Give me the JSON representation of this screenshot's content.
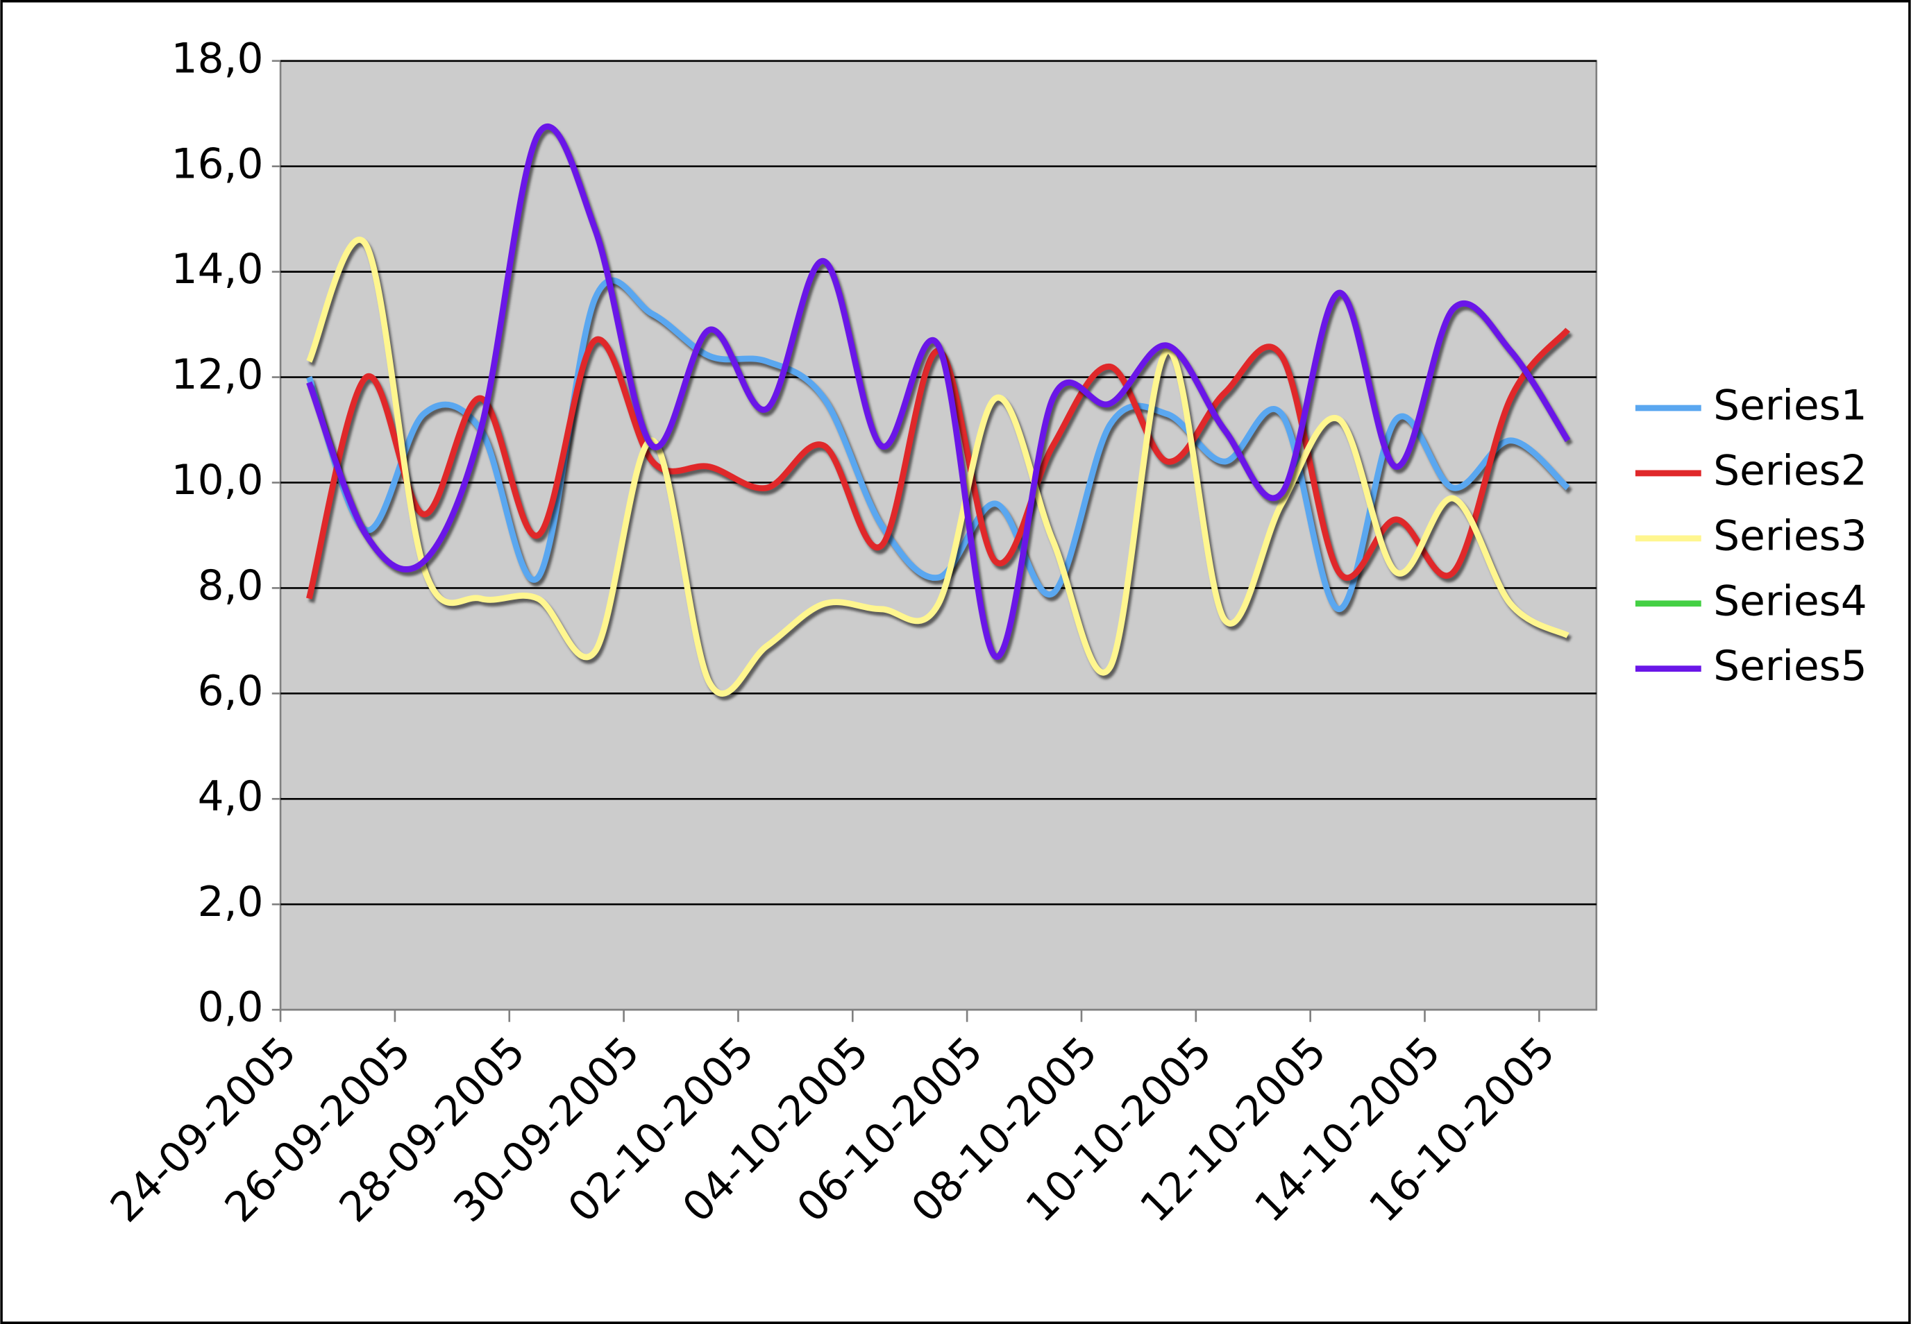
{
  "chart_data": {
    "type": "line",
    "categories": [
      "24-09-2005",
      null,
      "26-09-2005",
      null,
      "28-09-2005",
      null,
      "30-09-2005",
      null,
      "02-10-2005",
      null,
      "04-10-2005",
      null,
      "06-10-2005",
      null,
      "08-10-2005",
      null,
      "10-10-2005",
      null,
      "12-10-2005",
      null,
      "14-10-2005",
      null,
      "16-10-2005"
    ],
    "series": [
      {
        "name": "Series1",
        "color": "#5aa7f0",
        "values": [
          12.0,
          9.1,
          11.3,
          11.0,
          8.2,
          13.5,
          13.2,
          12.4,
          12.3,
          11.6,
          9.2,
          8.2,
          9.6,
          7.9,
          11.1,
          11.3,
          10.4,
          11.3,
          7.6,
          11.2,
          9.9,
          10.8,
          9.9
        ]
      },
      {
        "name": "Series2",
        "color": "#e0282a",
        "values": [
          7.8,
          12.0,
          9.4,
          11.6,
          9.0,
          12.7,
          10.4,
          10.3,
          9.9,
          10.7,
          8.8,
          12.5,
          8.5,
          10.7,
          12.2,
          10.4,
          11.7,
          12.4,
          8.3,
          9.3,
          8.3,
          11.6,
          12.9
        ]
      },
      {
        "name": "Series3",
        "color": "#fff68f",
        "values": [
          12.3,
          14.5,
          8.4,
          7.8,
          7.8,
          6.8,
          10.8,
          6.2,
          6.9,
          7.7,
          7.6,
          7.7,
          11.6,
          8.9,
          6.5,
          12.5,
          7.4,
          9.6,
          11.2,
          8.3,
          9.7,
          7.7,
          7.1
        ]
      },
      {
        "name": "Series4",
        "color": "#44d044",
        "values": [
          null,
          null,
          null,
          null,
          null,
          null,
          null,
          null,
          null,
          null,
          null,
          null,
          null,
          null,
          null,
          null,
          null,
          null,
          null,
          null,
          null,
          null,
          null
        ]
      },
      {
        "name": "Series5",
        "color": "#6a16e8",
        "values": [
          11.9,
          9.0,
          8.5,
          11.0,
          16.6,
          14.8,
          10.7,
          12.9,
          11.4,
          14.2,
          10.7,
          12.6,
          6.7,
          11.6,
          11.5,
          12.6,
          11.0,
          9.8,
          13.6,
          10.3,
          13.3,
          12.5,
          10.8
        ]
      }
    ],
    "ylim": [
      0,
      18
    ],
    "yticks": [
      {
        "value": 0,
        "label": "0,0"
      },
      {
        "value": 2,
        "label": "2,0"
      },
      {
        "value": 4,
        "label": "4,0"
      },
      {
        "value": 6,
        "label": "6,0"
      },
      {
        "value": 8,
        "label": "8,0"
      },
      {
        "value": 10,
        "label": "10,0"
      },
      {
        "value": 12,
        "label": "12,0"
      },
      {
        "value": 14,
        "label": "14,0"
      },
      {
        "value": 16,
        "label": "16,0"
      },
      {
        "value": 18,
        "label": "18,0"
      }
    ],
    "grid": true,
    "legend": "right",
    "smooth": true
  }
}
